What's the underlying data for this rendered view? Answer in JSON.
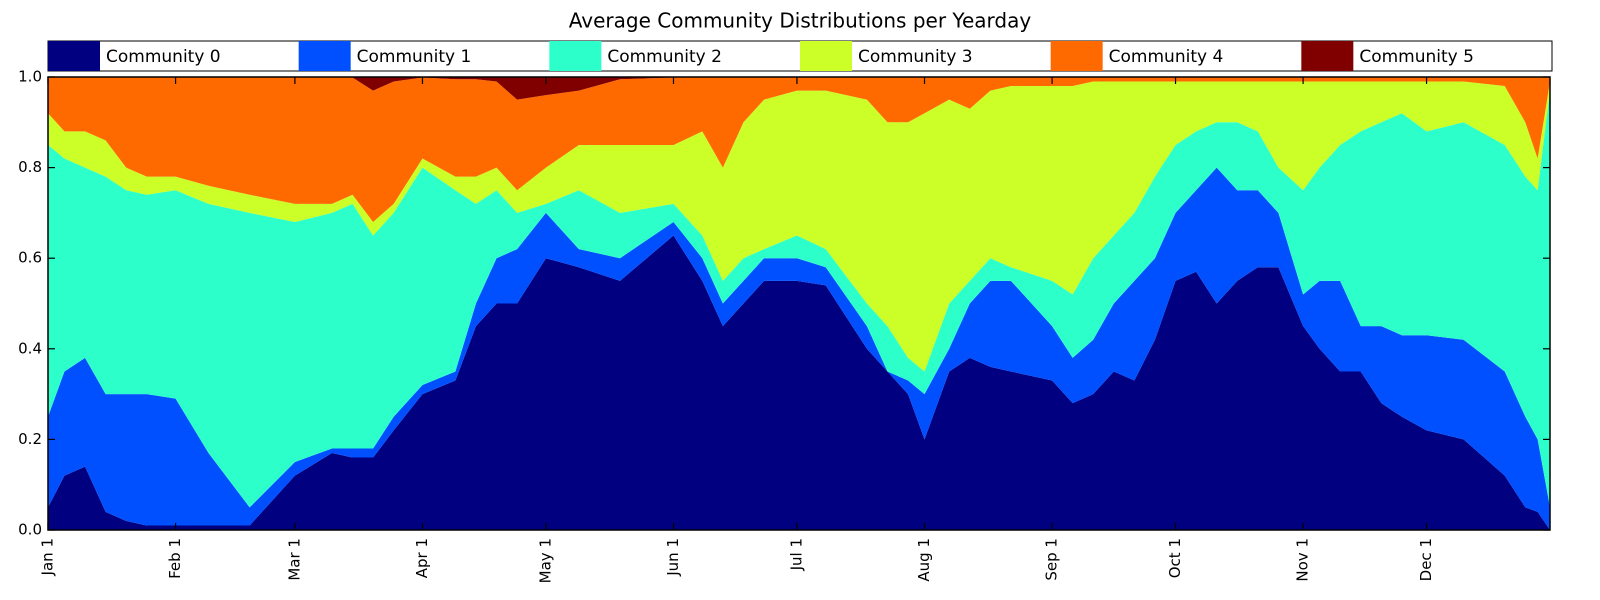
{
  "chart_data": {
    "type": "area",
    "stacked": true,
    "title": "Average Community Distributions per Yearday",
    "xlabel": "",
    "ylabel": "",
    "xlim": [
      1,
      366
    ],
    "ylim": [
      0,
      1
    ],
    "yticks": [
      "0.0",
      "0.2",
      "0.4",
      "0.6",
      "0.8",
      "1.0"
    ],
    "yticks_values": [
      0,
      0.2,
      0.4,
      0.6,
      0.8,
      1.0
    ],
    "xticks": [
      "Jan 1",
      "Feb 1",
      "Mar 1",
      "Apr 1",
      "May 1",
      "Jun 1",
      "Jul 1",
      "Aug 1",
      "Sep 1",
      "Oct 1",
      "Nov 1",
      "Dec 1"
    ],
    "xticks_days": [
      1,
      32,
      61,
      92,
      122,
      153,
      183,
      214,
      245,
      275,
      306,
      336
    ],
    "legend_position": "top",
    "cumulative_days": [
      1,
      5,
      10,
      15,
      20,
      25,
      32,
      40,
      50,
      61,
      70,
      75,
      80,
      85,
      92,
      100,
      105,
      110,
      115,
      122,
      130,
      140,
      153,
      160,
      165,
      170,
      175,
      183,
      190,
      200,
      205,
      210,
      214,
      220,
      225,
      230,
      235,
      245,
      250,
      255,
      260,
      265,
      270,
      275,
      280,
      285,
      290,
      295,
      300,
      306,
      310,
      315,
      320,
      325,
      330,
      336,
      345,
      355,
      360,
      363,
      366
    ],
    "series": [
      {
        "name": "Community 0",
        "color": "#000080",
        "cumulative": [
          0.05,
          0.12,
          0.14,
          0.04,
          0.02,
          0.01,
          0.01,
          0.01,
          0.01,
          0.12,
          0.17,
          0.16,
          0.16,
          0.22,
          0.3,
          0.33,
          0.45,
          0.5,
          0.5,
          0.6,
          0.58,
          0.55,
          0.65,
          0.55,
          0.45,
          0.5,
          0.55,
          0.55,
          0.54,
          0.4,
          0.35,
          0.3,
          0.2,
          0.35,
          0.38,
          0.36,
          0.35,
          0.33,
          0.28,
          0.3,
          0.35,
          0.33,
          0.42,
          0.55,
          0.57,
          0.5,
          0.55,
          0.58,
          0.58,
          0.45,
          0.4,
          0.35,
          0.35,
          0.28,
          0.25,
          0.22,
          0.2,
          0.12,
          0.05,
          0.04,
          0.0
        ]
      },
      {
        "name": "Community 1",
        "color": "#0050FF",
        "cumulative": [
          0.25,
          0.35,
          0.38,
          0.3,
          0.3,
          0.3,
          0.29,
          0.17,
          0.05,
          0.15,
          0.18,
          0.18,
          0.18,
          0.25,
          0.32,
          0.35,
          0.5,
          0.6,
          0.62,
          0.7,
          0.62,
          0.6,
          0.68,
          0.6,
          0.5,
          0.55,
          0.6,
          0.6,
          0.58,
          0.45,
          0.35,
          0.33,
          0.3,
          0.4,
          0.5,
          0.55,
          0.55,
          0.45,
          0.38,
          0.42,
          0.5,
          0.55,
          0.6,
          0.7,
          0.75,
          0.8,
          0.75,
          0.75,
          0.7,
          0.52,
          0.55,
          0.55,
          0.45,
          0.45,
          0.43,
          0.43,
          0.42,
          0.35,
          0.25,
          0.2,
          0.05
        ]
      },
      {
        "name": "Community 2",
        "color": "#2CFFCA",
        "cumulative": [
          0.85,
          0.82,
          0.8,
          0.78,
          0.75,
          0.74,
          0.75,
          0.72,
          0.7,
          0.68,
          0.7,
          0.72,
          0.65,
          0.7,
          0.8,
          0.75,
          0.72,
          0.75,
          0.7,
          0.72,
          0.75,
          0.7,
          0.72,
          0.65,
          0.55,
          0.6,
          0.62,
          0.65,
          0.62,
          0.5,
          0.45,
          0.38,
          0.35,
          0.5,
          0.55,
          0.6,
          0.58,
          0.55,
          0.52,
          0.6,
          0.65,
          0.7,
          0.78,
          0.85,
          0.88,
          0.9,
          0.9,
          0.88,
          0.8,
          0.75,
          0.8,
          0.85,
          0.88,
          0.9,
          0.92,
          0.88,
          0.9,
          0.85,
          0.78,
          0.75,
          0.97
        ]
      },
      {
        "name": "Community 3",
        "color": "#CCFF27",
        "cumulative": [
          0.92,
          0.88,
          0.88,
          0.86,
          0.8,
          0.78,
          0.78,
          0.76,
          0.74,
          0.72,
          0.72,
          0.74,
          0.68,
          0.72,
          0.82,
          0.78,
          0.78,
          0.8,
          0.75,
          0.8,
          0.85,
          0.85,
          0.85,
          0.88,
          0.8,
          0.9,
          0.95,
          0.97,
          0.97,
          0.95,
          0.9,
          0.9,
          0.92,
          0.95,
          0.93,
          0.97,
          0.98,
          0.98,
          0.98,
          0.99,
          0.99,
          0.99,
          0.99,
          0.99,
          0.99,
          0.99,
          0.99,
          0.99,
          0.99,
          0.99,
          0.99,
          0.99,
          0.99,
          0.99,
          0.99,
          0.99,
          0.99,
          0.98,
          0.9,
          0.82,
          0.99
        ]
      },
      {
        "name": "Community 4",
        "color": "#FF6A00",
        "cumulative": [
          0.999,
          0.999,
          0.999,
          0.999,
          0.999,
          0.999,
          0.999,
          0.999,
          0.999,
          0.999,
          0.999,
          0.999,
          0.97,
          0.99,
          0.999,
          0.995,
          0.995,
          0.99,
          0.95,
          0.96,
          0.97,
          0.995,
          0.999,
          0.999,
          0.999,
          0.999,
          0.999,
          0.999,
          0.999,
          0.999,
          0.999,
          0.999,
          0.999,
          0.999,
          0.999,
          0.999,
          0.999,
          0.999,
          0.999,
          0.999,
          0.999,
          0.999,
          0.999,
          0.999,
          0.999,
          0.999,
          0.999,
          0.999,
          0.999,
          0.999,
          0.999,
          0.999,
          0.999,
          0.999,
          0.999,
          0.999,
          0.999,
          0.999,
          0.999,
          0.999,
          0.999
        ]
      },
      {
        "name": "Community 5",
        "color": "#800000",
        "cumulative": [
          1,
          1,
          1,
          1,
          1,
          1,
          1,
          1,
          1,
          1,
          1,
          1,
          1,
          1,
          1,
          1,
          1,
          1,
          1,
          1,
          1,
          1,
          1,
          1,
          1,
          1,
          1,
          1,
          1,
          1,
          1,
          1,
          1,
          1,
          1,
          1,
          1,
          1,
          1,
          1,
          1,
          1,
          1,
          1,
          1,
          1,
          1,
          1,
          1,
          1,
          1,
          1,
          1,
          1,
          1,
          1,
          1,
          1,
          1,
          1,
          1
        ]
      }
    ]
  }
}
